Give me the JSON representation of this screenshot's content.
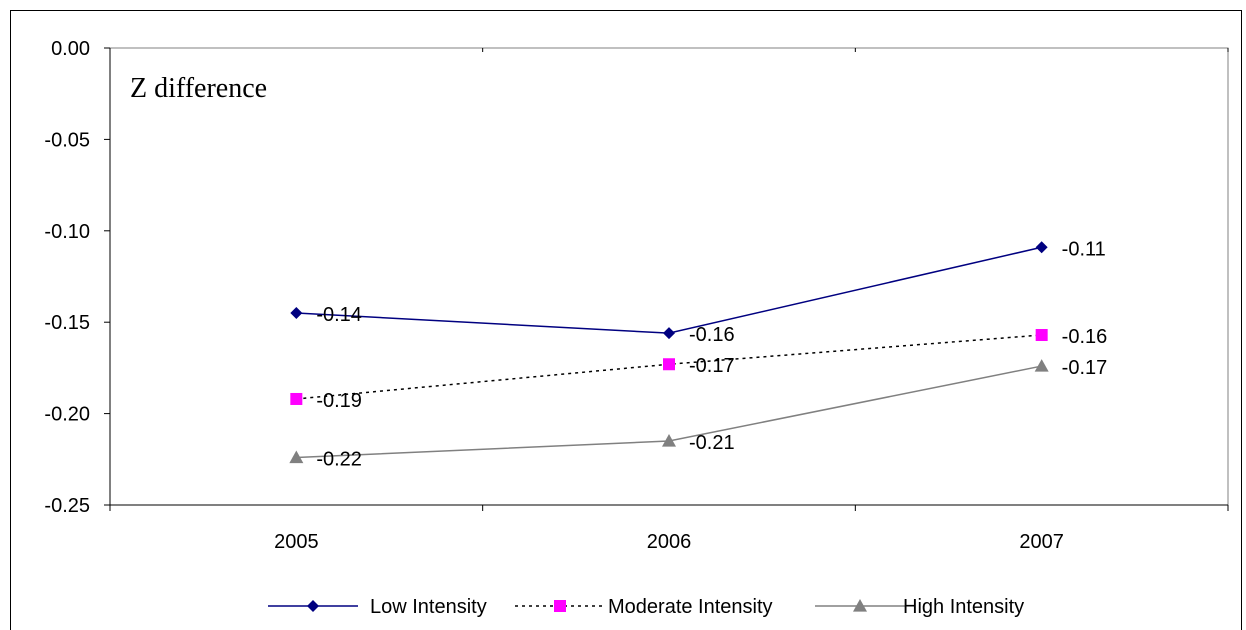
{
  "chart_data": {
    "type": "line",
    "title": "Z difference",
    "xlabel": "",
    "ylabel": "",
    "categories": [
      "2005",
      "2006",
      "2007"
    ],
    "ylim": [
      -0.25,
      0.0
    ],
    "yticks": [
      "0.00",
      "-0.05",
      "-0.10",
      "-0.15",
      "-0.20",
      "-0.25"
    ],
    "ytick_values": [
      0.0,
      -0.05,
      -0.1,
      -0.15,
      -0.2,
      -0.25
    ],
    "grid": false,
    "legend_position": "bottom",
    "series": [
      {
        "name": "Low Intensity",
        "values": [
          -0.145,
          -0.156,
          -0.109
        ],
        "labels": [
          "-0.14",
          "-0.16",
          "-0.11"
        ],
        "color": "#000080",
        "marker": "diamond",
        "line_style": "solid"
      },
      {
        "name": "Moderate Intensity",
        "values": [
          -0.192,
          -0.173,
          -0.157
        ],
        "labels": [
          "-0.19",
          "-0.17",
          "-0.16"
        ],
        "color": "#ff00ff",
        "line_color": "#000000",
        "marker": "square",
        "line_style": "dotted"
      },
      {
        "name": "High Intensity",
        "values": [
          -0.224,
          -0.215,
          -0.174
        ],
        "labels": [
          "-0.22",
          "-0.21",
          "-0.17"
        ],
        "color": "#808080",
        "marker": "triangle",
        "line_style": "solid"
      }
    ]
  }
}
